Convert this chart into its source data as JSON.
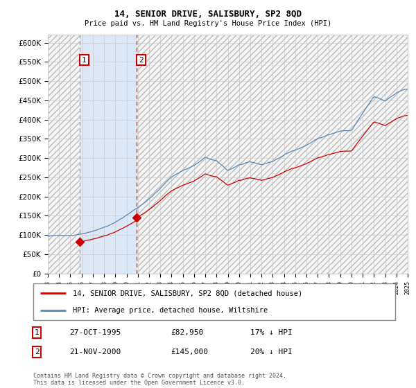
{
  "title": "14, SENIOR DRIVE, SALISBURY, SP2 8QD",
  "subtitle": "Price paid vs. HM Land Registry's House Price Index (HPI)",
  "legend_line1": "14, SENIOR DRIVE, SALISBURY, SP2 8QD (detached house)",
  "legend_line2": "HPI: Average price, detached house, Wiltshire",
  "transaction1_date": "27-OCT-1995",
  "transaction1_price": 82950,
  "transaction1_label": "17% ↓ HPI",
  "transaction2_date": "21-NOV-2000",
  "transaction2_price": 145000,
  "transaction2_label": "20% ↓ HPI",
  "footnote": "Contains HM Land Registry data © Crown copyright and database right 2024.\nThis data is licensed under the Open Government Licence v3.0.",
  "hpi_color": "#5588bb",
  "price_color": "#cc0000",
  "dashed_line1_color": "#aaaaaa",
  "dashed_line2_color": "#dd3333",
  "shade_color": "#dce8f5",
  "ylim_min": 0,
  "ylim_max": 620000,
  "yticks": [
    0,
    50000,
    100000,
    150000,
    200000,
    250000,
    300000,
    350000,
    400000,
    450000,
    500000,
    550000,
    600000
  ],
  "xstart_year": 1993,
  "xend_year": 2025,
  "transaction1_year": 1995.83,
  "transaction2_year": 2000.89
}
